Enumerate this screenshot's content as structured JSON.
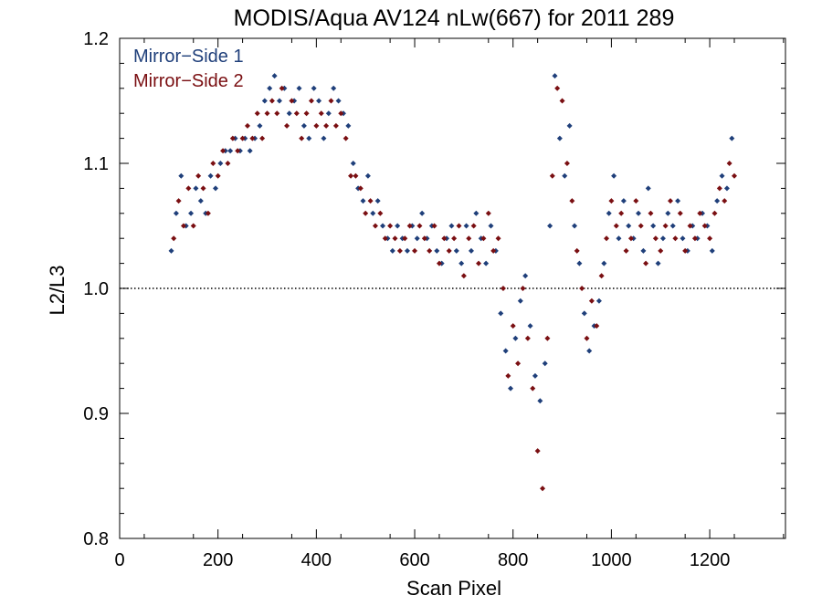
{
  "chart_data": {
    "type": "scatter",
    "title": "MODIS/Aqua AV124 nLw(667) for 2011 289",
    "xlabel": "Scan Pixel",
    "ylabel": "L2/L3",
    "xlim": [
      0,
      1354
    ],
    "ylim": [
      0.8,
      1.2
    ],
    "xticks": [
      0,
      200,
      400,
      600,
      800,
      1000,
      1200
    ],
    "xtick_labels": [
      "0",
      "200",
      "400",
      "600",
      "800",
      "1000",
      "1200"
    ],
    "yticks": [
      0.8,
      0.9,
      1.0,
      1.1,
      1.2
    ],
    "ytick_labels": [
      "0.8",
      "0.9",
      "1.0",
      "1.1",
      "1.2"
    ],
    "reference_line": 1.0,
    "legend_position": "top-left",
    "marker": "diamond",
    "series": [
      {
        "name": "Mirror−Side 1",
        "color": "#1f3f7a",
        "x": [
          105,
          115,
          125,
          135,
          145,
          155,
          165,
          175,
          185,
          195,
          205,
          215,
          225,
          235,
          245,
          255,
          265,
          275,
          285,
          295,
          305,
          315,
          325,
          335,
          345,
          355,
          365,
          375,
          385,
          395,
          405,
          415,
          425,
          435,
          445,
          455,
          465,
          475,
          485,
          495,
          505,
          515,
          525,
          535,
          545,
          555,
          565,
          575,
          585,
          595,
          605,
          615,
          625,
          635,
          645,
          655,
          665,
          675,
          685,
          695,
          705,
          715,
          725,
          735,
          745,
          755,
          765,
          775,
          785,
          795,
          805,
          815,
          825,
          835,
          845,
          855,
          865,
          875,
          885,
          895,
          905,
          915,
          925,
          935,
          945,
          955,
          965,
          975,
          985,
          995,
          1005,
          1015,
          1025,
          1035,
          1045,
          1055,
          1065,
          1075,
          1085,
          1095,
          1105,
          1115,
          1125,
          1135,
          1145,
          1155,
          1165,
          1175,
          1185,
          1195,
          1205,
          1215,
          1225,
          1235,
          1245
        ],
        "y": [
          1.03,
          1.06,
          1.09,
          1.05,
          1.06,
          1.08,
          1.07,
          1.06,
          1.09,
          1.08,
          1.1,
          1.11,
          1.11,
          1.12,
          1.11,
          1.12,
          1.11,
          1.12,
          1.13,
          1.15,
          1.16,
          1.17,
          1.15,
          1.16,
          1.14,
          1.15,
          1.16,
          1.13,
          1.12,
          1.16,
          1.15,
          1.12,
          1.14,
          1.16,
          1.15,
          1.14,
          1.13,
          1.1,
          1.08,
          1.07,
          1.09,
          1.06,
          1.07,
          1.05,
          1.04,
          1.03,
          1.05,
          1.04,
          1.03,
          1.05,
          1.04,
          1.06,
          1.04,
          1.05,
          1.03,
          1.02,
          1.04,
          1.05,
          1.03,
          1.02,
          1.05,
          1.03,
          1.06,
          1.04,
          1.02,
          1.05,
          1.03,
          0.98,
          0.95,
          0.92,
          0.96,
          0.99,
          1.01,
          0.97,
          0.93,
          0.91,
          0.94,
          1.05,
          1.17,
          1.12,
          1.09,
          1.13,
          1.05,
          1.02,
          0.98,
          0.95,
          0.97,
          0.99,
          1.02,
          1.06,
          1.09,
          1.04,
          1.07,
          1.05,
          1.04,
          1.06,
          1.03,
          1.08,
          1.05,
          1.02,
          1.04,
          1.06,
          1.05,
          1.07,
          1.04,
          1.03,
          1.05,
          1.04,
          1.06,
          1.05,
          1.03,
          1.07,
          1.09,
          1.08,
          1.12
        ]
      },
      {
        "name": "Mirror−Side 2",
        "color": "#7a0f12",
        "x": [
          110,
          120,
          130,
          140,
          150,
          160,
          170,
          180,
          190,
          200,
          210,
          220,
          230,
          240,
          250,
          260,
          270,
          280,
          290,
          300,
          310,
          320,
          330,
          340,
          350,
          360,
          370,
          380,
          390,
          400,
          410,
          420,
          430,
          440,
          450,
          460,
          470,
          480,
          490,
          500,
          510,
          520,
          530,
          540,
          550,
          560,
          570,
          580,
          590,
          600,
          610,
          620,
          630,
          640,
          650,
          660,
          670,
          680,
          690,
          700,
          710,
          720,
          730,
          740,
          750,
          760,
          770,
          780,
          790,
          800,
          810,
          820,
          830,
          840,
          850,
          860,
          870,
          880,
          890,
          900,
          910,
          920,
          930,
          940,
          950,
          960,
          970,
          980,
          990,
          1000,
          1010,
          1020,
          1030,
          1040,
          1050,
          1060,
          1070,
          1080,
          1090,
          1100,
          1110,
          1120,
          1130,
          1140,
          1150,
          1160,
          1170,
          1180,
          1190,
          1200,
          1210,
          1220,
          1230,
          1240,
          1250
        ],
        "y": [
          1.04,
          1.07,
          1.05,
          1.08,
          1.05,
          1.09,
          1.08,
          1.06,
          1.1,
          1.09,
          1.11,
          1.1,
          1.12,
          1.11,
          1.12,
          1.13,
          1.12,
          1.14,
          1.12,
          1.14,
          1.15,
          1.14,
          1.16,
          1.13,
          1.15,
          1.14,
          1.12,
          1.14,
          1.15,
          1.13,
          1.14,
          1.13,
          1.15,
          1.13,
          1.14,
          1.12,
          1.09,
          1.09,
          1.08,
          1.06,
          1.07,
          1.05,
          1.06,
          1.04,
          1.05,
          1.04,
          1.03,
          1.04,
          1.05,
          1.03,
          1.05,
          1.04,
          1.03,
          1.05,
          1.02,
          1.04,
          1.03,
          1.04,
          1.05,
          1.01,
          1.04,
          1.05,
          1.02,
          1.04,
          1.06,
          1.03,
          1.04,
          1.0,
          0.93,
          0.97,
          0.94,
          1.0,
          0.96,
          0.92,
          0.87,
          0.84,
          0.96,
          1.09,
          1.16,
          1.15,
          1.1,
          1.07,
          1.03,
          1.0,
          0.96,
          0.99,
          0.97,
          1.01,
          1.04,
          1.07,
          1.05,
          1.06,
          1.03,
          1.04,
          1.07,
          1.05,
          1.02,
          1.06,
          1.04,
          1.03,
          1.05,
          1.07,
          1.04,
          1.06,
          1.03,
          1.05,
          1.04,
          1.06,
          1.05,
          1.04,
          1.06,
          1.08,
          1.07,
          1.1,
          1.09
        ]
      }
    ]
  }
}
